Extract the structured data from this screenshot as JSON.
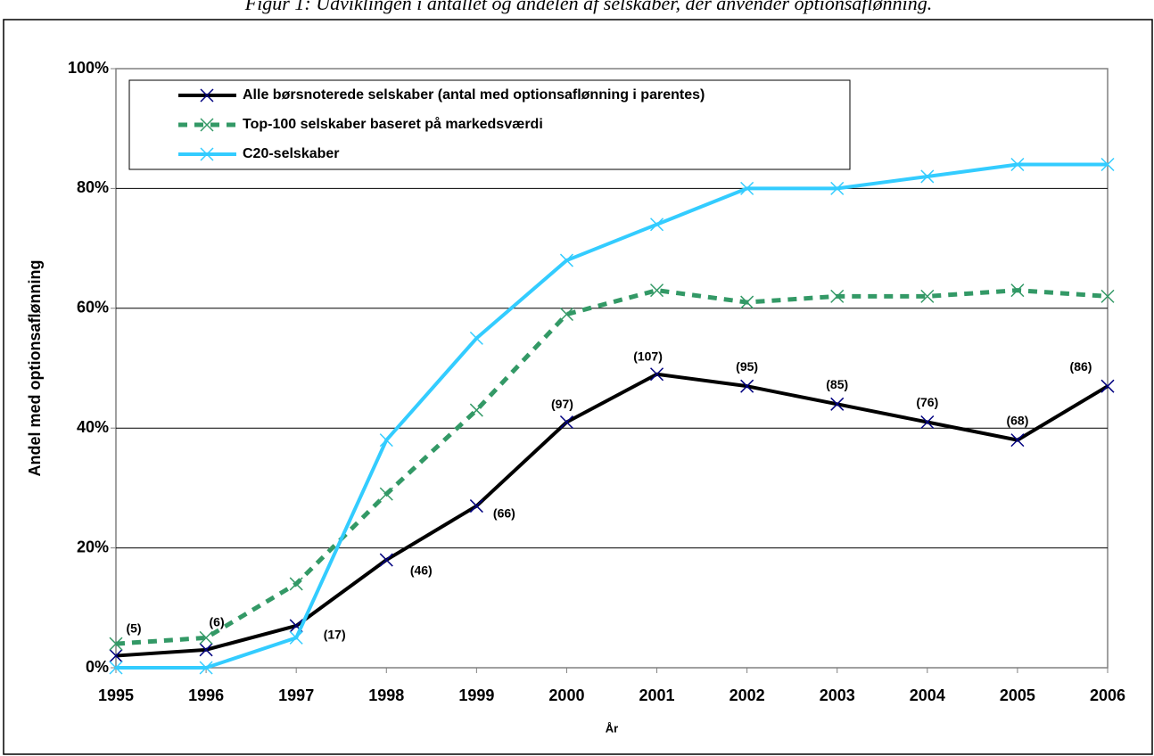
{
  "chart_data": {
    "type": "line",
    "title": "Figur 1: Udviklingen i antallet og andelen af selskaber, der anvender optionsaflønning.",
    "x_label": "År",
    "y_label": "Andel med optionsaflønning",
    "x": [
      1995,
      1996,
      1997,
      1998,
      1999,
      2000,
      2001,
      2002,
      2003,
      2004,
      2005,
      2006
    ],
    "xlim": [
      1995,
      2006
    ],
    "xticks": [
      1995,
      1996,
      1997,
      1998,
      1999,
      2000,
      2001,
      2002,
      2003,
      2004,
      2005,
      2006
    ],
    "ylim": [
      0,
      100
    ],
    "yticks": [
      {
        "value": 0,
        "label": "0%"
      },
      {
        "value": 20,
        "label": "20%"
      },
      {
        "value": 40,
        "label": "40%"
      },
      {
        "value": 60,
        "label": "60%"
      },
      {
        "value": 80,
        "label": "80%"
      },
      {
        "value": 100,
        "label": "100%"
      }
    ],
    "grid": true,
    "legend": "top-left",
    "series": [
      {
        "name": "Alle børsnoterede selskaber (antal med optionsaflønning i parentes)",
        "color": "#000000",
        "marker_color": "#000080",
        "dashed": false,
        "values": [
          2,
          3,
          7,
          18,
          27,
          41,
          49,
          47,
          44,
          41,
          38,
          47
        ],
        "annotations": [
          "(5)",
          "(6)",
          "(17)",
          "(46)",
          "(66)",
          "(97)",
          "(107)",
          "(95)",
          "(85)",
          "(76)",
          "(68)",
          "(86)"
        ]
      },
      {
        "name": "Top-100 selskaber baseret på markedsværdi",
        "color": "#339966",
        "marker_color": "#339966",
        "dashed": true,
        "values": [
          4,
          5,
          14,
          29,
          43,
          59,
          63,
          61,
          62,
          62,
          63,
          62
        ]
      },
      {
        "name": "C20-selskaber",
        "color": "#33CCFF",
        "marker_color": "#33CCFF",
        "dashed": false,
        "values": [
          0,
          0,
          5,
          38,
          55,
          68,
          74,
          80,
          80,
          82,
          84,
          84
        ]
      }
    ]
  }
}
